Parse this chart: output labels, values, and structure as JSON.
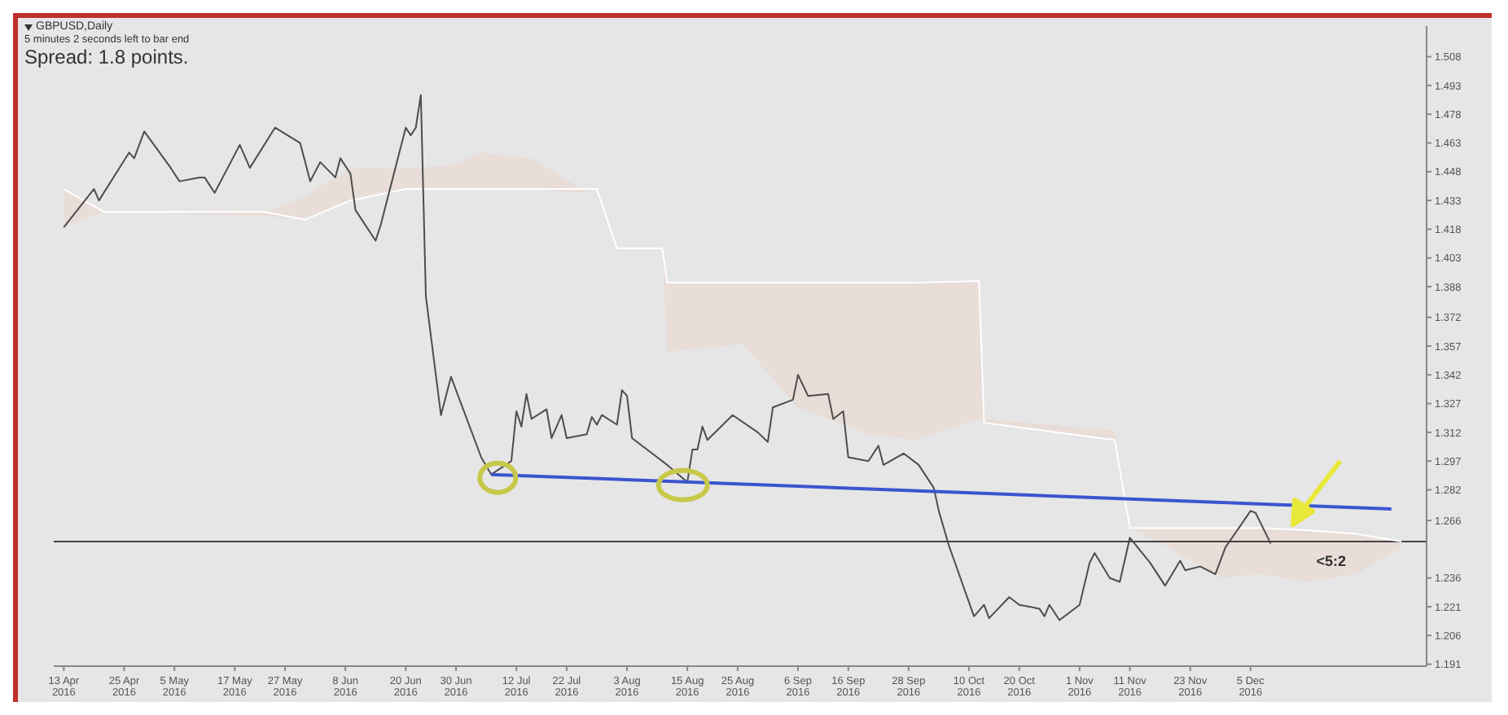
{
  "chart_data": {
    "type": "line",
    "title": "GBPUSD,Daily",
    "subtitle": "5 minutes 2 seconds left to bar end",
    "annotations": [
      "Spread: 1.8 points.",
      {
        "text": "<5:2",
        "x": "2016-12-21",
        "y": 1.252
      }
    ],
    "xlim": [
      "2016-04-11",
      "2017-01-09"
    ],
    "xticks": [
      {
        "value": "2016-04-13",
        "label": "13 Apr 2016"
      },
      {
        "value": "2016-04-25",
        "label": "25 Apr 2016"
      },
      {
        "value": "2016-05-05",
        "label": "5 May 2016"
      },
      {
        "value": "2016-05-17",
        "label": "17 May 2016"
      },
      {
        "value": "2016-05-27",
        "label": "27 May 2016"
      },
      {
        "value": "2016-06-08",
        "label": "8 Jun 2016"
      },
      {
        "value": "2016-06-20",
        "label": "20 Jun 2016"
      },
      {
        "value": "2016-06-30",
        "label": "30 Jun 2016"
      },
      {
        "value": "2016-07-12",
        "label": "12 Jul 2016"
      },
      {
        "value": "2016-07-22",
        "label": "22 Jul 2016"
      },
      {
        "value": "2016-08-03",
        "label": "3 Aug 2016"
      },
      {
        "value": "2016-08-15",
        "label": "15 Aug 2016"
      },
      {
        "value": "2016-08-25",
        "label": "25 Aug 2016"
      },
      {
        "value": "2016-09-06",
        "label": "6 Sep 2016"
      },
      {
        "value": "2016-09-16",
        "label": "16 Sep 2016"
      },
      {
        "value": "2016-09-28",
        "label": "28 Sep 2016"
      },
      {
        "value": "2016-10-10",
        "label": "10 Oct 2016"
      },
      {
        "value": "2016-10-20",
        "label": "20 Oct 2016"
      },
      {
        "value": "2016-11-01",
        "label": "1 Nov 2016"
      },
      {
        "value": "2016-11-11",
        "label": "11 Nov 2016"
      },
      {
        "value": "2016-11-23",
        "label": "23 Nov 2016"
      },
      {
        "value": "2016-12-05",
        "label": "5 Dec 2016"
      }
    ],
    "ylim": [
      1.19,
      1.524
    ],
    "yticks": [
      1.508,
      1.493,
      1.478,
      1.463,
      1.448,
      1.433,
      1.418,
      1.403,
      1.388,
      1.372,
      1.357,
      1.342,
      1.327,
      1.312,
      1.297,
      1.282,
      1.266,
      1.236,
      1.221,
      1.206,
      1.191
    ],
    "ref_lines": [
      {
        "axis": "y",
        "value": 1.255,
        "color": "#444444"
      }
    ],
    "series": [
      {
        "color": "#ffffff",
        "x": [
          "2016-04-13",
          "2016-04-21",
          "2016-05-23",
          "2016-05-31",
          "2016-06-09",
          "2016-06-20",
          "2016-06-29",
          "2016-07-05",
          "2016-07-15",
          "2016-07-25",
          "2016-07-28",
          "2016-08-01",
          "2016-08-10",
          "2016-08-11",
          "2016-08-26",
          "2016-09-06",
          "2016-09-20",
          "2016-09-29",
          "2016-10-12",
          "2016-10-13",
          "2016-11-08",
          "2016-11-11",
          "2016-11-18",
          "2016-11-29",
          "2016-12-07",
          "2016-12-16",
          "2016-12-26",
          "2017-01-04"
        ],
        "values": [
          1.439,
          1.427,
          1.427,
          1.423,
          1.433,
          1.439,
          1.439,
          1.439,
          1.439,
          1.439,
          1.439,
          1.408,
          1.408,
          1.39,
          1.39,
          1.39,
          1.39,
          1.39,
          1.391,
          1.317,
          1.308,
          1.262,
          1.262,
          1.262,
          1.262,
          1.261,
          1.259,
          1.255
        ],
        "lower": [
          1.419,
          1.427,
          1.425,
          1.423,
          1.433,
          1.439,
          1.439,
          1.439,
          1.439,
          1.437,
          1.439,
          1.408,
          1.408,
          1.354,
          1.358,
          1.325,
          1.311,
          1.308,
          1.319,
          1.317,
          1.308,
          1.262,
          1.253,
          1.236,
          1.238,
          1.234,
          1.238,
          1.252
        ],
        "upper": [
          1.439,
          1.427,
          1.427,
          1.435,
          1.45,
          1.45,
          1.451,
          1.458,
          1.455,
          1.439,
          1.439,
          1.408,
          1.408,
          1.39,
          1.39,
          1.39,
          1.39,
          1.39,
          1.391,
          1.319,
          1.313,
          1.262,
          1.262,
          1.262,
          1.262,
          1.261,
          1.259,
          1.255
        ]
      },
      {
        "color": "#4d4d4d",
        "x": [
          "2016-04-13",
          "2016-04-19",
          "2016-04-20",
          "2016-04-26",
          "2016-04-27",
          "2016-04-29",
          "2016-05-04",
          "2016-05-06",
          "2016-05-10",
          "2016-05-11",
          "2016-05-13",
          "2016-05-18",
          "2016-05-20",
          "2016-05-25",
          "2016-05-30",
          "2016-06-01",
          "2016-06-03",
          "2016-06-06",
          "2016-06-07",
          "2016-06-09",
          "2016-06-10",
          "2016-06-14",
          "2016-06-15",
          "2016-06-20",
          "2016-06-21",
          "2016-06-22",
          "2016-06-23",
          "2016-06-24",
          "2016-06-27",
          "2016-06-29",
          "2016-07-01",
          "2016-07-05",
          "2016-07-07",
          "2016-07-11",
          "2016-07-12",
          "2016-07-13",
          "2016-07-14",
          "2016-07-15",
          "2016-07-18",
          "2016-07-19",
          "2016-07-21",
          "2016-07-22",
          "2016-07-26",
          "2016-07-27",
          "2016-07-28",
          "2016-07-29",
          "2016-08-01",
          "2016-08-02",
          "2016-08-03",
          "2016-08-04",
          "2016-08-09",
          "2016-08-11",
          "2016-08-15",
          "2016-08-16",
          "2016-08-17",
          "2016-08-18",
          "2016-08-19",
          "2016-08-24",
          "2016-08-29",
          "2016-08-31",
          "2016-09-01",
          "2016-09-05",
          "2016-09-06",
          "2016-09-08",
          "2016-09-12",
          "2016-09-13",
          "2016-09-15",
          "2016-09-16",
          "2016-09-20",
          "2016-09-22",
          "2016-09-23",
          "2016-09-27",
          "2016-09-30",
          "2016-10-03",
          "2016-10-04",
          "2016-10-06",
          "2016-10-11",
          "2016-10-13",
          "2016-10-14",
          "2016-10-18",
          "2016-10-20",
          "2016-10-24",
          "2016-10-25",
          "2016-10-26",
          "2016-10-28",
          "2016-11-01",
          "2016-11-03",
          "2016-11-04",
          "2016-11-07",
          "2016-11-09",
          "2016-11-11",
          "2016-11-15",
          "2016-11-18",
          "2016-11-21",
          "2016-11-22",
          "2016-11-25",
          "2016-11-28",
          "2016-11-30",
          "2016-12-05",
          "2016-12-06",
          "2016-12-09"
        ],
        "values": [
          1.419,
          1.439,
          1.433,
          1.458,
          1.455,
          1.469,
          1.451,
          1.443,
          1.445,
          1.445,
          1.437,
          1.462,
          1.45,
          1.471,
          1.463,
          1.443,
          1.453,
          1.445,
          1.455,
          1.447,
          1.428,
          1.412,
          1.42,
          1.471,
          1.467,
          1.471,
          1.488,
          1.383,
          1.321,
          1.341,
          1.327,
          1.299,
          1.29,
          1.297,
          1.323,
          1.315,
          1.332,
          1.319,
          1.324,
          1.309,
          1.321,
          1.309,
          1.311,
          1.32,
          1.316,
          1.321,
          1.316,
          1.334,
          1.331,
          1.309,
          1.299,
          1.295,
          1.286,
          1.303,
          1.303,
          1.315,
          1.308,
          1.321,
          1.312,
          1.307,
          1.325,
          1.329,
          1.342,
          1.331,
          1.332,
          1.319,
          1.323,
          1.299,
          1.297,
          1.305,
          1.295,
          1.301,
          1.295,
          1.283,
          1.271,
          1.253,
          1.216,
          1.222,
          1.215,
          1.226,
          1.222,
          1.22,
          1.216,
          1.222,
          1.214,
          1.222,
          1.244,
          1.249,
          1.236,
          1.234,
          1.257,
          1.244,
          1.232,
          1.245,
          1.24,
          1.242,
          1.238,
          1.252,
          1.271,
          1.27,
          1.254
        ]
      },
      {
        "color": "#3a55d0",
        "x": [
          "2016-07-07",
          "2017-01-02"
        ],
        "values": [
          1.29,
          1.272
        ]
      }
    ]
  }
}
